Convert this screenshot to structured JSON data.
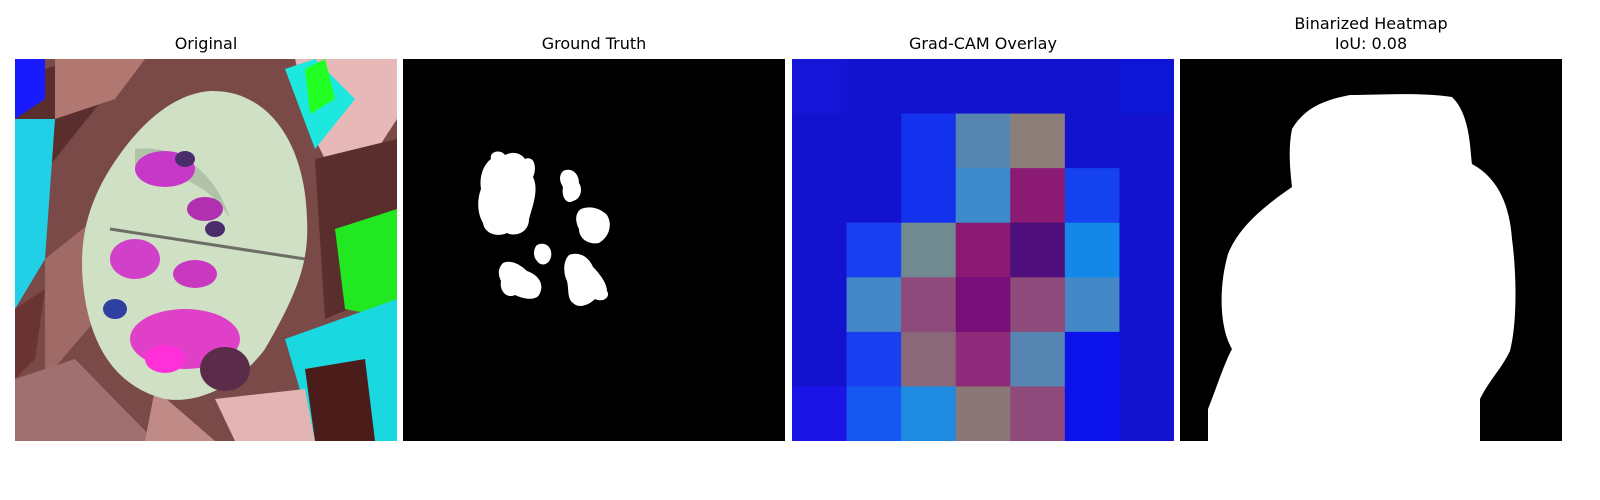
{
  "panels": [
    {
      "title": "Original"
    },
    {
      "title": "Ground Truth"
    },
    {
      "title": "Grad-CAM Overlay"
    },
    {
      "title": "Binarized Heatmap",
      "subtitle": "IoU: 0.08"
    }
  ],
  "gradcam": {
    "grid": [
      [
        "#1515d8",
        "#1313cf",
        "#1313cf",
        "#1313cf",
        "#1313cf",
        "#1313cf",
        "#0d15d6"
      ],
      [
        "#1313cf",
        "#1313cf",
        "#1431ee",
        "#5585b0",
        "#8b7e78",
        "#1313cf",
        "#1313cf"
      ],
      [
        "#1313cf",
        "#1313cf",
        "#1431ee",
        "#3d8acc",
        "#8a1a74",
        "#1442ee",
        "#1313cf"
      ],
      [
        "#1313cf",
        "#1a3ff0",
        "#708a8f",
        "#8a1a74",
        "#4e0f7c",
        "#1388e8",
        "#1313cf"
      ],
      [
        "#1313cf",
        "#4488c8",
        "#8e4a7a",
        "#760f78",
        "#8e4a7a",
        "#4488c8",
        "#1313cf"
      ],
      [
        "#1313cf",
        "#1a3ff0",
        "#8a6878",
        "#8e2a7a",
        "#5585b0",
        "#0c12ec",
        "#1313cf"
      ],
      [
        "#1a15e6",
        "#1458f0",
        "#1f8be0",
        "#8a7878",
        "#8e4a7a",
        "#0c12ec",
        "#1313cf"
      ]
    ]
  }
}
